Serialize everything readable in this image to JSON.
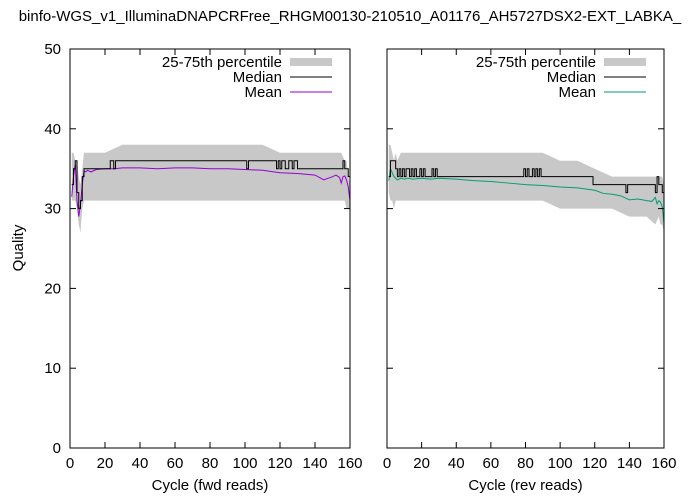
{
  "title": "binfo-WGS_v1_IlluminaDNAPCRFree_RHGM00130-210510_A01176_AH5727DSX2-EXT_LABKA_",
  "ylabel": "Quality",
  "legend": {
    "percentile": "25-75th percentile",
    "median": "Median",
    "mean": "Mean"
  },
  "colors": {
    "band": "#c8c8c8",
    "median": "#000000",
    "mean_fwd": "#9400d3",
    "mean_rev": "#009e73"
  },
  "chart_data": [
    {
      "type": "line",
      "xlabel": "Cycle (fwd reads)",
      "xlim": [
        0,
        160
      ],
      "ylim": [
        0,
        50
      ],
      "xticks": [
        0,
        20,
        40,
        60,
        80,
        100,
        120,
        140,
        160
      ],
      "yticks": [
        0,
        10,
        20,
        30,
        40,
        50
      ],
      "series": [
        {
          "name": "25-75th percentile",
          "x": [
            1,
            2,
            3,
            4,
            5,
            6,
            7,
            8,
            10,
            15,
            20,
            30,
            40,
            50,
            60,
            70,
            80,
            90,
            100,
            110,
            120,
            130,
            140,
            150,
            153,
            155,
            157,
            158,
            159,
            160
          ],
          "low": [
            31,
            31,
            31,
            30,
            28,
            27,
            30,
            31,
            31,
            31,
            31,
            31,
            31,
            31,
            31,
            31,
            31,
            31,
            31,
            31,
            31,
            31,
            31,
            31,
            31,
            31,
            31,
            30,
            30,
            30
          ],
          "high": [
            37,
            37,
            36,
            36,
            34,
            33,
            35,
            37,
            37,
            37,
            37,
            38,
            38,
            38,
            38,
            38,
            38,
            38,
            38,
            38,
            37,
            37,
            37,
            37,
            37,
            37,
            36,
            36,
            34,
            33
          ]
        },
        {
          "name": "Median",
          "x": [
            1,
            2,
            3,
            4,
            5,
            6,
            7,
            8,
            9,
            10,
            15,
            20,
            22,
            23,
            25,
            26,
            100,
            101,
            102,
            117,
            118,
            119,
            120,
            121,
            122,
            123,
            124,
            125,
            126,
            127,
            128,
            129,
            130,
            131,
            155,
            156,
            157,
            158,
            159,
            160
          ],
          "y": [
            33,
            35,
            36,
            32,
            30,
            31,
            34,
            35,
            35,
            35,
            35,
            35,
            35,
            36,
            35,
            36,
            36,
            35,
            36,
            36,
            35,
            36,
            35,
            36,
            36,
            35,
            35,
            36,
            36,
            35,
            36,
            36,
            35,
            35,
            35,
            36,
            35,
            35,
            34,
            33
          ]
        },
        {
          "name": "Mean",
          "x": [
            1,
            2,
            3,
            4,
            5,
            6,
            7,
            8,
            9,
            10,
            12,
            15,
            20,
            25,
            30,
            40,
            50,
            60,
            70,
            80,
            90,
            100,
            110,
            120,
            130,
            140,
            145,
            150,
            152,
            154,
            155,
            156,
            157,
            158,
            159,
            160
          ],
          "y": [
            31.5,
            34,
            35.5,
            31,
            29,
            30.5,
            33,
            34.7,
            34.6,
            34.8,
            34.6,
            34.9,
            35.0,
            35.0,
            35.1,
            35.1,
            35.0,
            35.1,
            35.1,
            35.0,
            35.0,
            34.9,
            34.8,
            34.5,
            34.4,
            34.2,
            33.6,
            34.0,
            34.2,
            33.9,
            33.2,
            34.0,
            34.1,
            33.6,
            32.7,
            31.0
          ]
        }
      ]
    },
    {
      "type": "line",
      "xlabel": "Cycle (rev reads)",
      "xlim": [
        0,
        160
      ],
      "ylim": [
        0,
        50
      ],
      "xticks": [
        0,
        20,
        40,
        60,
        80,
        100,
        120,
        140,
        160
      ],
      "yticks": [
        0,
        10,
        20,
        30,
        40,
        50
      ],
      "series": [
        {
          "name": "25-75th percentile",
          "x": [
            1,
            2,
            3,
            4,
            5,
            6,
            8,
            10,
            20,
            30,
            40,
            50,
            60,
            70,
            80,
            90,
            100,
            110,
            120,
            130,
            140,
            150,
            155,
            157,
            158,
            159,
            160
          ],
          "low": [
            32,
            31,
            31,
            30,
            31,
            31,
            31,
            31,
            31,
            31,
            31,
            31,
            31,
            31,
            31,
            31,
            30,
            30,
            30,
            30,
            29,
            29,
            28,
            29,
            28,
            28,
            27
          ],
          "high": [
            38,
            38,
            37,
            36,
            37,
            36,
            37,
            37,
            37,
            37,
            37,
            37,
            37,
            37,
            37,
            37,
            36,
            36,
            35,
            34,
            34,
            34,
            34,
            34,
            34,
            34,
            33
          ]
        },
        {
          "name": "Median",
          "x": [
            1,
            2,
            3,
            4,
            5,
            6,
            7,
            8,
            9,
            10,
            11,
            12,
            13,
            14,
            15,
            16,
            17,
            18,
            19,
            20,
            21,
            22,
            25,
            26,
            27,
            28,
            29,
            30,
            78,
            79,
            80,
            81,
            82,
            83,
            84,
            85,
            86,
            87,
            88,
            89,
            90,
            118,
            119,
            120,
            137,
            138,
            139,
            154,
            155,
            156,
            157,
            158,
            159,
            160
          ],
          "y": [
            34,
            36,
            36,
            36,
            35,
            34,
            35,
            34,
            35,
            34,
            35,
            35,
            34,
            35,
            34,
            35,
            34,
            34,
            35,
            34,
            35,
            34,
            34,
            35,
            34,
            35,
            34,
            34,
            34,
            35,
            34,
            35,
            34,
            34,
            35,
            34,
            35,
            34,
            35,
            34,
            34,
            34,
            33,
            33,
            33,
            32,
            33,
            33,
            32,
            34,
            33,
            33,
            32,
            31
          ]
        },
        {
          "name": "Mean",
          "x": [
            1,
            2,
            3,
            4,
            5,
            6,
            8,
            10,
            12,
            15,
            20,
            25,
            30,
            40,
            50,
            60,
            70,
            80,
            90,
            100,
            110,
            120,
            125,
            130,
            135,
            140,
            145,
            150,
            153,
            155,
            156,
            157,
            158,
            159,
            160
          ],
          "y": [
            33.5,
            35,
            34.5,
            34,
            33.8,
            33.6,
            33.8,
            33.7,
            33.8,
            33.7,
            33.8,
            33.7,
            33.8,
            33.7,
            33.5,
            33.4,
            33.2,
            33.0,
            32.9,
            32.7,
            32.6,
            32.3,
            31.9,
            31.8,
            31.6,
            31.1,
            31.2,
            31.0,
            30.9,
            31.4,
            30.6,
            31.0,
            30.8,
            30.2,
            28.2
          ]
        }
      ]
    }
  ]
}
